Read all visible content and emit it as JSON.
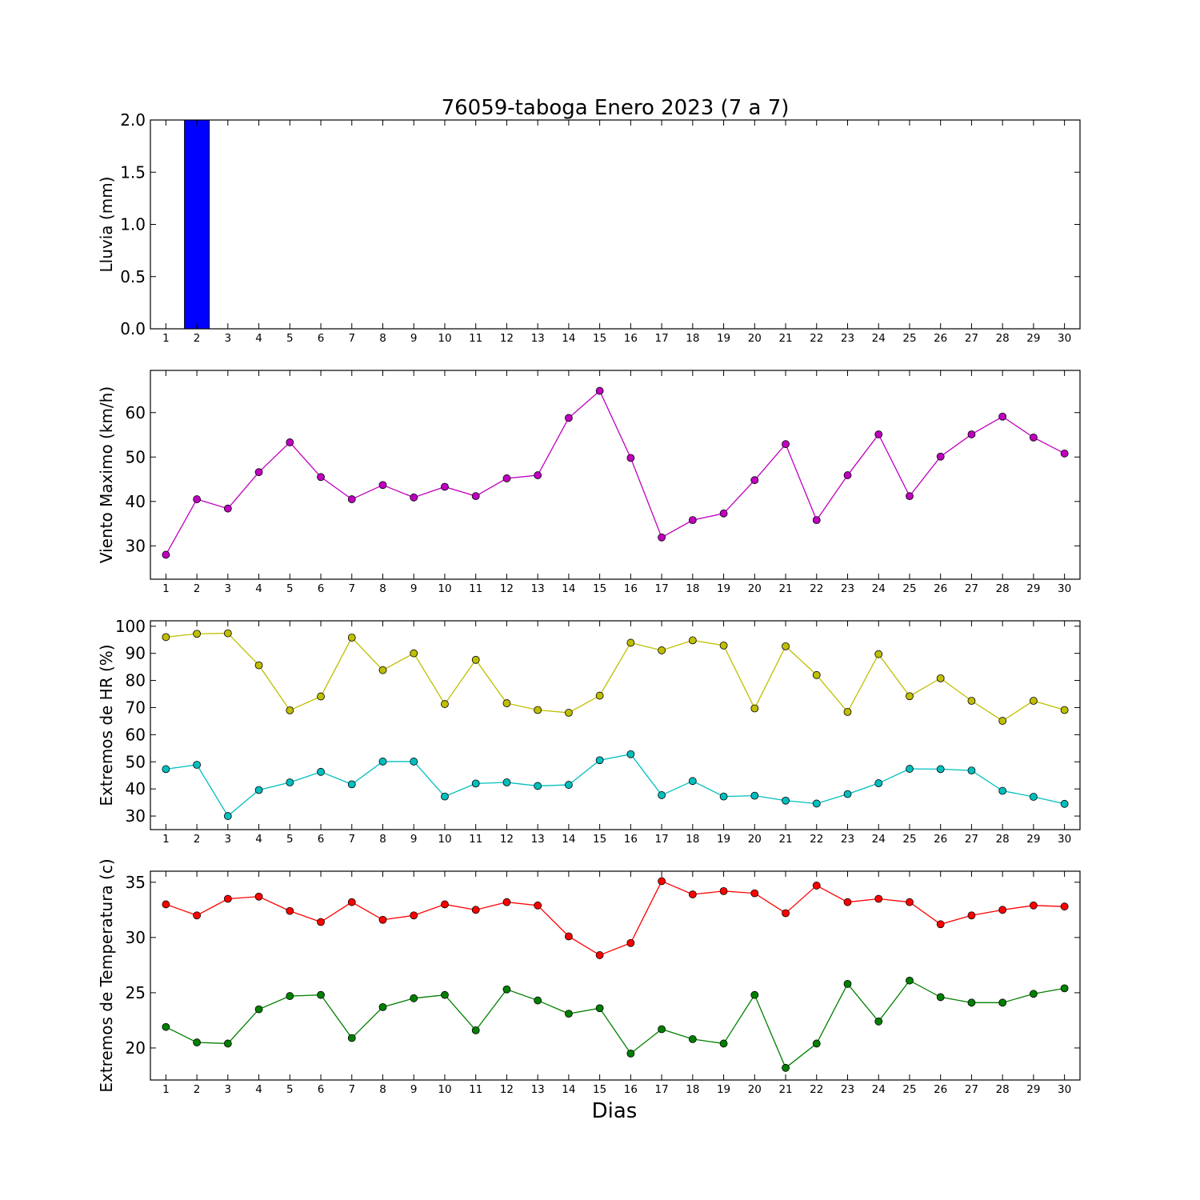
{
  "figure": {
    "title": "76059-taboga Enero 2023  (7 a 7)",
    "xlabel": "Dias"
  },
  "chart_data": [
    {
      "type": "bar",
      "ylabel": "Lluvia (mm)",
      "categories": [
        1,
        2,
        3,
        4,
        5,
        6,
        7,
        8,
        9,
        10,
        11,
        12,
        13,
        14,
        15,
        16,
        17,
        18,
        19,
        20,
        21,
        22,
        23,
        24,
        25,
        26,
        27,
        28,
        29,
        30
      ],
      "values": [
        0,
        2.0,
        0,
        0,
        0,
        0,
        0,
        0,
        0,
        0,
        0,
        0,
        0,
        0,
        0,
        0,
        0,
        0,
        0,
        0,
        0,
        0,
        0,
        0,
        0,
        0,
        0,
        0,
        0,
        0
      ],
      "ylim": [
        0,
        2.0
      ],
      "yticks": [
        0.0,
        0.5,
        1.0,
        1.5,
        2.0
      ],
      "ytick_labels": [
        "0.0",
        "0.5",
        "1.0",
        "1.5",
        "2.0"
      ],
      "bar_color": "#0000ff",
      "grid": false
    },
    {
      "type": "line",
      "ylabel": "Viento Maximo (km/h)",
      "x": [
        1,
        2,
        3,
        4,
        5,
        6,
        7,
        8,
        9,
        10,
        11,
        12,
        13,
        14,
        15,
        16,
        17,
        18,
        19,
        20,
        21,
        22,
        23,
        24,
        25,
        26,
        27,
        28,
        29,
        30
      ],
      "series": [
        {
          "color": "#bf00bf",
          "values": [
            28,
            40.5,
            38.4,
            46.6,
            53.3,
            45.5,
            40.5,
            43.7,
            40.9,
            43.3,
            41.2,
            45.2,
            45.9,
            58.8,
            64.9,
            49.8,
            31.9,
            35.8,
            37.3,
            44.8,
            52.9,
            35.8,
            45.9,
            55.1,
            41.2,
            50.1,
            55.1,
            59.1,
            54.4,
            50.8
          ]
        }
      ],
      "ylim": [
        22.5,
        69.5
      ],
      "yticks": [
        30,
        40,
        50,
        60
      ],
      "ytick_labels": [
        "30",
        "40",
        "50",
        "60"
      ],
      "grid": false
    },
    {
      "type": "line",
      "ylabel": "Extremos de HR (%)",
      "x": [
        1,
        2,
        3,
        4,
        5,
        6,
        7,
        8,
        9,
        10,
        11,
        12,
        13,
        14,
        15,
        16,
        17,
        18,
        19,
        20,
        21,
        22,
        23,
        24,
        25,
        26,
        27,
        28,
        29,
        30
      ],
      "series": [
        {
          "color": "#bfbf00",
          "values": [
            96,
            97.2,
            97.4,
            85.6,
            69,
            74.1,
            95.8,
            83.8,
            90,
            71.3,
            87.6,
            71.6,
            69.1,
            68.1,
            74.4,
            93.9,
            91.1,
            94.8,
            92.9,
            69.7,
            92.6,
            82,
            68.4,
            89.7,
            74.2,
            80.8,
            72.5,
            65.1,
            72.5,
            69.1
          ]
        },
        {
          "color": "#00bfbf",
          "values": [
            47.3,
            48.9,
            30,
            39.6,
            42.4,
            46.3,
            41.7,
            50.1,
            50.1,
            37.2,
            42,
            42.4,
            41.1,
            41.5,
            50.6,
            52.8,
            37.7,
            42.9,
            37.2,
            37.5,
            35.7,
            34.6,
            38.1,
            42.1,
            47.4,
            47.3,
            46.8,
            39.3,
            37.1,
            34.5
          ]
        }
      ],
      "ylim": [
        25,
        102
      ],
      "yticks": [
        30,
        40,
        50,
        60,
        70,
        80,
        90,
        100
      ],
      "ytick_labels": [
        "30",
        "40",
        "50",
        "60",
        "70",
        "80",
        "90",
        "100"
      ],
      "grid": false
    },
    {
      "type": "line",
      "ylabel": "Extremos de Temperatura (c)",
      "x": [
        1,
        2,
        3,
        4,
        5,
        6,
        7,
        8,
        9,
        10,
        11,
        12,
        13,
        14,
        15,
        16,
        17,
        18,
        19,
        20,
        21,
        22,
        23,
        24,
        25,
        26,
        27,
        28,
        29,
        30
      ],
      "series": [
        {
          "color": "#ff0000",
          "values": [
            33,
            32,
            33.5,
            33.7,
            32.4,
            31.4,
            33.2,
            31.6,
            32,
            33,
            32.5,
            33.2,
            32.9,
            30.1,
            28.4,
            29.5,
            35.1,
            33.9,
            34.2,
            34,
            32.2,
            34.7,
            33.2,
            33.5,
            33.2,
            31.2,
            32,
            32.5,
            32.9,
            32.8
          ]
        },
        {
          "color": "#008000",
          "values": [
            21.9,
            20.5,
            20.4,
            23.5,
            24.7,
            24.8,
            20.9,
            23.7,
            24.5,
            24.8,
            21.6,
            25.3,
            24.3,
            23.1,
            23.6,
            19.5,
            21.7,
            20.8,
            20.4,
            24.8,
            18.2,
            20.4,
            25.8,
            22.4,
            26.1,
            24.6,
            24.1,
            24.1,
            24.9,
            25.4
          ]
        }
      ],
      "ylim": [
        17.1,
        36.0
      ],
      "yticks": [
        20,
        25,
        30,
        35
      ],
      "ytick_labels": [
        "20",
        "25",
        "30",
        "35"
      ],
      "grid": false
    }
  ]
}
